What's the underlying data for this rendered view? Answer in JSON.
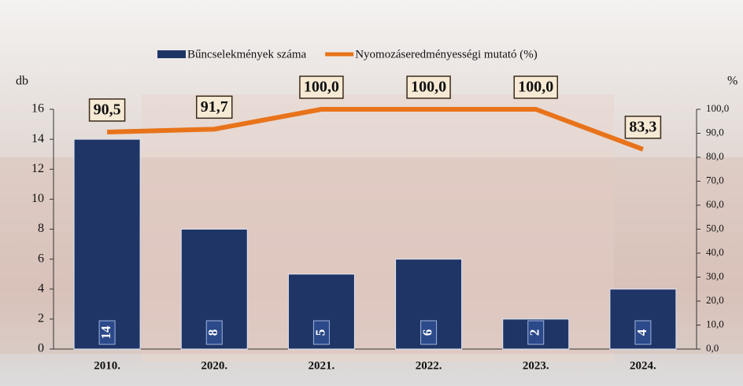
{
  "chart_data": {
    "type": "bar-line",
    "categories": [
      "2010.",
      "2020.",
      "2021.",
      "2022.",
      "2023.",
      "2024."
    ],
    "y_axis_label": "db",
    "y2_axis_label": "%",
    "series": [
      {
        "name": "Bűncselekmények száma",
        "type": "bar",
        "color": "#1f3566",
        "values": [
          14,
          8,
          5,
          6,
          2,
          4
        ]
      },
      {
        "name": "Nyomozáseredményességi mutató (%)",
        "type": "line",
        "axis": "y2",
        "color": "#e8731a",
        "values": [
          90.5,
          91.7,
          100,
          100,
          100,
          83.3
        ],
        "value_labels": [
          "90,5",
          "91,7",
          "100,0",
          "100,0",
          "100,0",
          "83,3"
        ]
      }
    ],
    "ylim": [
      0,
      16
    ],
    "yticks": [
      0,
      2,
      4,
      6,
      8,
      10,
      12,
      14,
      16
    ],
    "y2lim": [
      0,
      100
    ],
    "y2ticks": [
      {
        "value": 0,
        "label": "0,0"
      },
      {
        "value": 10,
        "label": "10,0"
      },
      {
        "value": 20,
        "label": "20,0"
      },
      {
        "value": 30,
        "label": "30,0"
      },
      {
        "value": 40,
        "label": "40,0"
      },
      {
        "value": 50,
        "label": "50,0"
      },
      {
        "value": 60,
        "label": "60,0"
      },
      {
        "value": 70,
        "label": "70,0"
      },
      {
        "value": 80,
        "label": "80,0"
      },
      {
        "value": 90,
        "label": "90,0"
      },
      {
        "value": 100,
        "label": "100,0"
      }
    ]
  }
}
